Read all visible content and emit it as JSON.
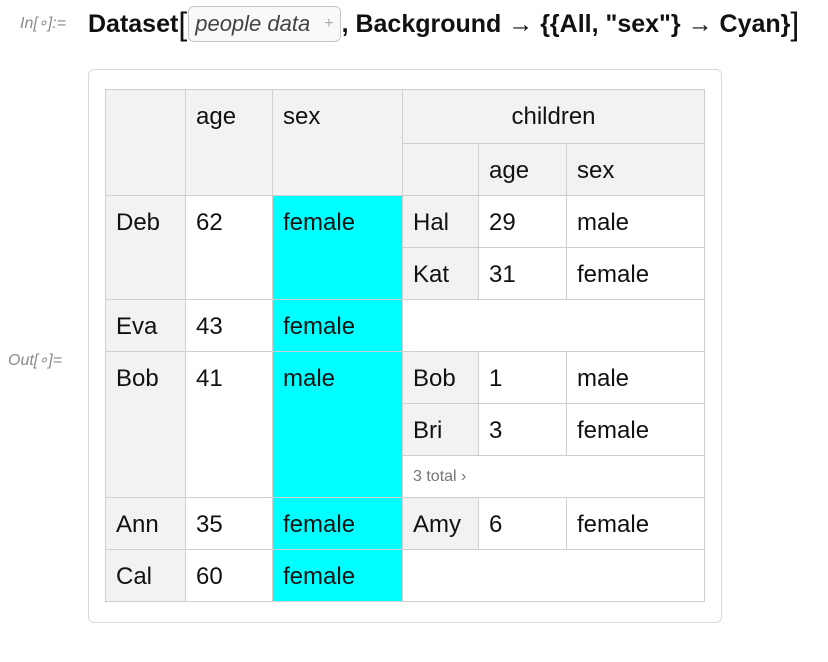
{
  "input": {
    "label": "In[∘]:=",
    "function": "Dataset",
    "bracket_open": "[",
    "placeholder_text": "people data",
    "plus": "+",
    "rest": ", Background → {{All, \"sex\"} → Cyan}",
    "bracket_close": "]"
  },
  "output": {
    "label": "Out[∘]="
  },
  "table": {
    "headers": {
      "age": "age",
      "sex": "sex",
      "children": "children",
      "child_age": "age",
      "child_sex": "sex"
    },
    "rows": [
      {
        "name": "Deb",
        "age": "62",
        "sex": "female",
        "children": [
          {
            "name": "Hal",
            "age": "29",
            "sex": "male"
          },
          {
            "name": "Kat",
            "age": "31",
            "sex": "female"
          }
        ]
      },
      {
        "name": "Eva",
        "age": "43",
        "sex": "female",
        "children": []
      },
      {
        "name": "Bob",
        "age": "41",
        "sex": "male",
        "children": [
          {
            "name": "Bob",
            "age": "1",
            "sex": "male"
          },
          {
            "name": "Bri",
            "age": "3",
            "sex": "female"
          }
        ],
        "more": "3 total ›"
      },
      {
        "name": "Ann",
        "age": "35",
        "sex": "female",
        "children": [
          {
            "name": "Amy",
            "age": "6",
            "sex": "female"
          }
        ]
      },
      {
        "name": "Cal",
        "age": "60",
        "sex": "female",
        "children": []
      }
    ]
  },
  "colors": {
    "highlight": "#00ffff",
    "header_bg": "#f2f2f2",
    "grid": "#cfcfcf"
  }
}
